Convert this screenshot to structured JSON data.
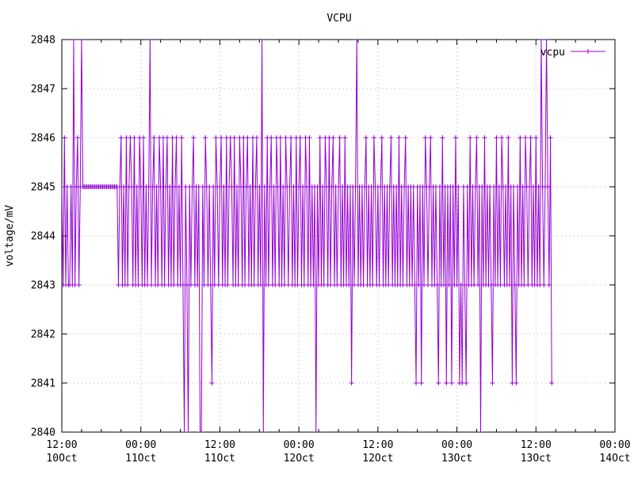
{
  "title": "VCPU",
  "chart_data": {
    "type": "line",
    "title": "VCPU",
    "ylabel": "voltage/mV",
    "xlabel": "",
    "ylim": [
      2840,
      2848
    ],
    "y_ticks": [
      2840,
      2841,
      2842,
      2843,
      2844,
      2845,
      2846,
      2847,
      2848
    ],
    "x_ticks": [
      {
        "time": "12:00",
        "date": "10Oct"
      },
      {
        "time": "00:00",
        "date": "11Oct"
      },
      {
        "time": "12:00",
        "date": "11Oct"
      },
      {
        "time": "00:00",
        "date": "12Oct"
      },
      {
        "time": "12:00",
        "date": "12Oct"
      },
      {
        "time": "00:00",
        "date": "13Oct"
      },
      {
        "time": "12:00",
        "date": "13Oct"
      },
      {
        "time": "00:00",
        "date": "14Oct"
      }
    ],
    "x_span_hours": 84,
    "x_major_tick_hours": 12,
    "x_minor_tick_hours": 3,
    "grid": true,
    "legend": {
      "position": "top-right",
      "label": "vcpu"
    },
    "series": [
      {
        "name": "vcpu",
        "color": "#9400d3",
        "marker": "+",
        "start_hour": 0,
        "dt_hours": 0.2,
        "value_base_mv": 2840,
        "sample_encoding": "each digit d is one sample at (2840+d) mV taken every dt_hours; samples segments are concatenated in order",
        "samples": [
          "5363533538356358",
          "555555555555555555555555555",
          "356353635653635365363535",
          "8",
          "3563536536356353635635363",
          "05305356353500536535315",
          "365356",
          "353635",
          "653635",
          "365363",
          "563536",
          "356353",
          "80",
          "5363563536536",
          "3536535635363",
          "5635365363535",
          "0",
          "5363536536356",
          "3535635363535",
          "1",
          "535",
          "8",
          "35",
          "35356353536535",
          "35635353563535",
          "36353563535353",
          "1",
          "535",
          "1",
          "536535635353",
          "1",
          "53635",
          "1",
          "535",
          "1",
          "53635",
          "1",
          "3",
          "1",
          "53",
          "1",
          "5363535635",
          "0",
          "53635353",
          "1",
          "53635365353635",
          "1",
          "53",
          "1",
          "536353653563536353",
          "8",
          "535",
          "8",
          "536",
          "1"
        ]
      }
    ]
  },
  "colors": {
    "line": "#9400d3",
    "grid": "#b8b8b8",
    "axis": "#000000",
    "background": "#ffffff"
  }
}
